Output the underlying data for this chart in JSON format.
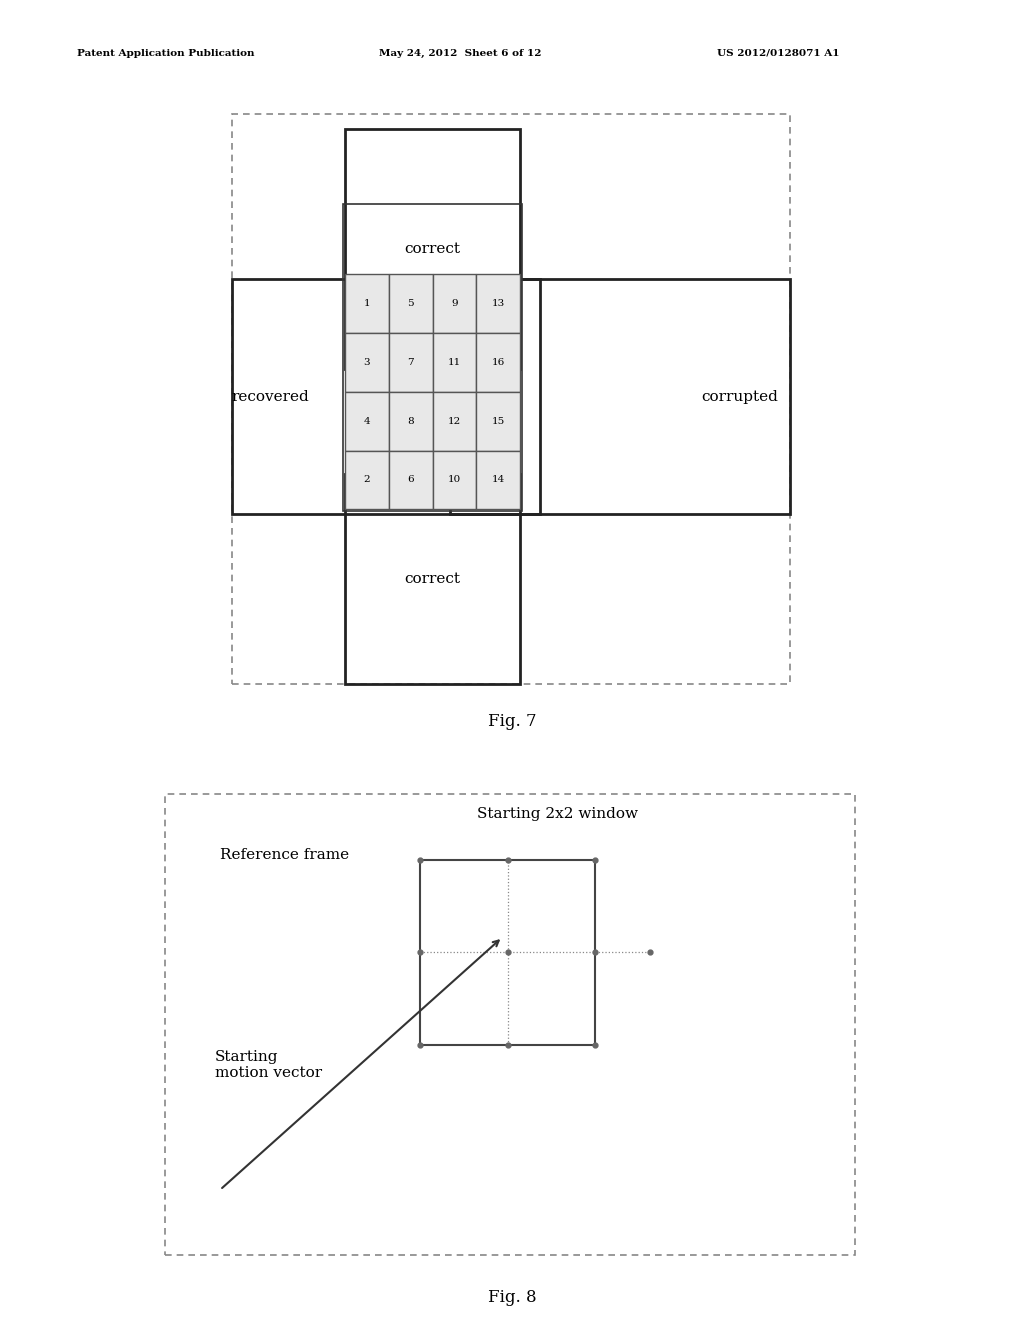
{
  "fig_width": 10.24,
  "fig_height": 13.2,
  "bg_color": "#ffffff",
  "header_left": "Patent Application Publication",
  "header_mid": "May 24, 2012  Sheet 6 of 12",
  "header_right": "US 2012/0128071 A1",
  "fig7_label": "Fig. 7",
  "fig8_label": "Fig. 8",
  "grid_numbers": [
    [
      "1",
      "5",
      "9",
      "13"
    ],
    [
      "3",
      "7",
      "11",
      "16"
    ],
    [
      "4",
      "8",
      "12",
      "15"
    ],
    [
      "2",
      "6",
      "10",
      "14"
    ]
  ],
  "label_recovered": "recovered",
  "label_corrupted": "corrupted",
  "label_correct_top": "correct",
  "label_correct_bottom": "correct",
  "label_reference_frame": "Reference frame",
  "label_starting_window": "Starting 2x2 window",
  "label_starting_mv": "Starting\nmotion vector",
  "grid_cell_color": "#e8e8e8"
}
